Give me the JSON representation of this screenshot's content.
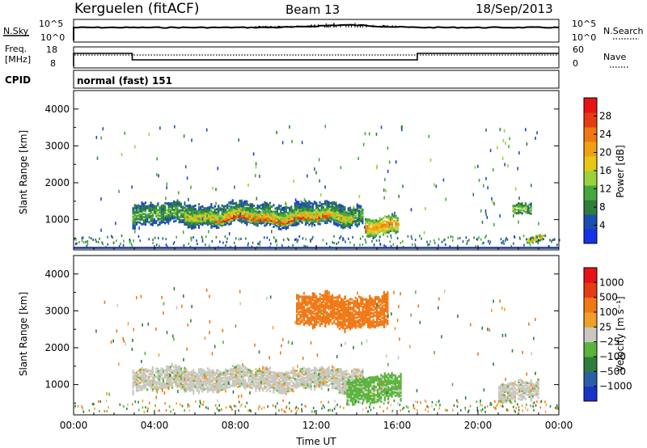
{
  "header": {
    "station": "Kerguelen (fitACF)",
    "beam": "Beam 13",
    "date": "18/Sep/2013"
  },
  "status": {
    "nsky_label": "N.Sky",
    "nsearch_label": "N.Search",
    "nsky_ticks": [
      "10^5",
      "10^0"
    ],
    "nsearch_ticks": [
      "10^5",
      "10^0"
    ],
    "freq_label_1": "Freq.",
    "freq_label_2": "[MHz]",
    "freq_ticks": [
      "18",
      "8"
    ],
    "nave_label": "Nave",
    "nave_ticks": [
      "60",
      "0"
    ],
    "cpid_label": "CPID",
    "cpid_value": "normal (fast) 151"
  },
  "x_axis": {
    "title": "Time UT",
    "ticks": [
      "00:00",
      "04:00",
      "08:00",
      "12:00",
      "16:00",
      "20:00",
      "00:00"
    ]
  },
  "power_panel": {
    "ylabel": "Slant Range [km]",
    "yticks": [
      "4000",
      "3000",
      "2000",
      "1000"
    ],
    "colorbar_label": "Power [dB]",
    "colorbar_ticks": [
      "28",
      "24",
      "20",
      "16",
      "12",
      "8",
      "4"
    ],
    "colors": [
      "#1433e6",
      "#1a4fb0",
      "#2f7d3a",
      "#46a83c",
      "#9bd23c",
      "#e6c814",
      "#f0a014",
      "#f07814",
      "#e63c14",
      "#e61414"
    ]
  },
  "velocity_panel": {
    "ylabel": "Slant Range [km]",
    "yticks": [
      "4000",
      "3000",
      "2000",
      "1000"
    ],
    "colorbar_label": "Velocity [m s⁻¹]",
    "colorbar_ticks": [
      "1000",
      "500",
      "100",
      "25",
      "−25",
      "−100",
      "−500",
      "−1000"
    ],
    "colors": [
      "#1a33c8",
      "#2a5fa8",
      "#2e7d3c",
      "#5ab43c",
      "#c8c8c0",
      "#f0a028",
      "#f07814",
      "#e63c14",
      "#e61414"
    ]
  },
  "chart_data": {
    "type": "heatmap",
    "x_range_hours": [
      0,
      24
    ],
    "y_range_km": [
      180,
      4500
    ],
    "power_regions": [
      {
        "t0": 2.9,
        "t1": 14.3,
        "r_center": 1150,
        "r_half": 300,
        "value_db": 10
      },
      {
        "t0": 5.5,
        "t1": 13.8,
        "r_center": 1100,
        "r_half": 150,
        "value_db": 18
      },
      {
        "t0": 7.0,
        "t1": 12.8,
        "r_center": 1000,
        "r_half": 70,
        "value_db": 27
      },
      {
        "t0": 14.4,
        "t1": 16.0,
        "r_center": 800,
        "r_half": 250,
        "value_db": 20
      },
      {
        "t0": 21.7,
        "t1": 22.6,
        "r_center": 1300,
        "r_half": 130,
        "value_db": 14
      },
      {
        "t0": 22.4,
        "t1": 23.2,
        "r_center": 450,
        "r_half": 80,
        "value_db": 20
      }
    ],
    "velocity_regions": [
      {
        "t0": 2.9,
        "t1": 14.3,
        "r_center": 1150,
        "r_half": 300,
        "value_ms": 0
      },
      {
        "t0": 13.5,
        "t1": 16.2,
        "r_center": 900,
        "r_half": 350,
        "value_ms": 50
      },
      {
        "t0": 11.0,
        "t1": 15.5,
        "r_center": 3000,
        "r_half": 450,
        "value_ms": -150
      },
      {
        "t0": 21.0,
        "t1": 23.0,
        "r_center": 850,
        "r_half": 250,
        "value_ms": 0
      }
    ]
  }
}
